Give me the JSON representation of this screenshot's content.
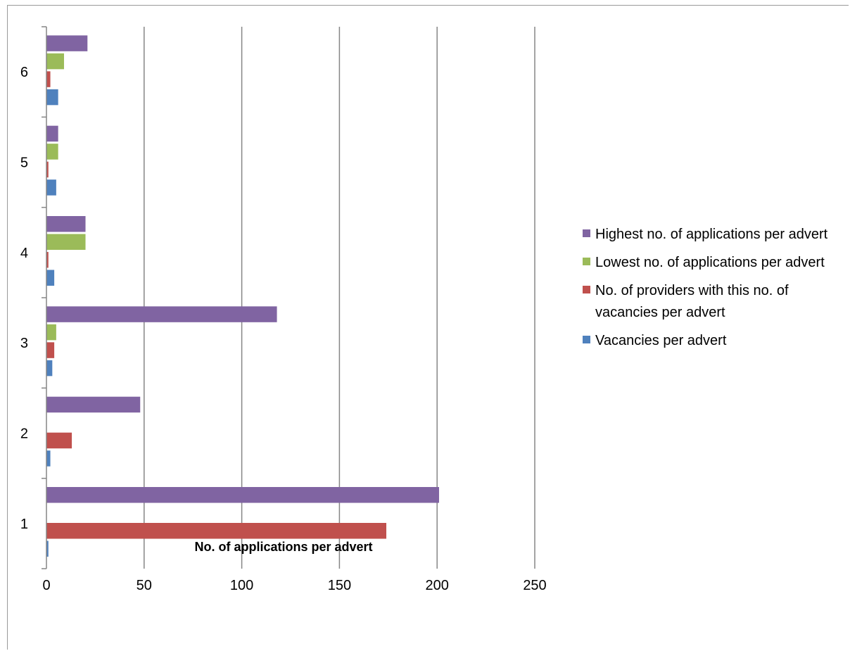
{
  "chart_data": {
    "type": "bar",
    "orientation": "horizontal",
    "title": "",
    "xlabel": "No. of applications per advert",
    "ylabel": "",
    "categories": [
      "1",
      "2",
      "3",
      "4",
      "5",
      "6"
    ],
    "xlim": [
      0,
      250
    ],
    "xticks": [
      "0",
      "50",
      "100",
      "150",
      "200",
      "250"
    ],
    "grid": true,
    "legend_position": "right",
    "series": [
      {
        "name": "Vacancies per advert",
        "color": "#4f81bd",
        "values": [
          1,
          2,
          3,
          4,
          5,
          6
        ]
      },
      {
        "name": "No. of providers with this no. of vacancies per advert",
        "color": "#c0504d",
        "values": [
          174,
          13,
          4,
          1,
          1,
          2
        ]
      },
      {
        "name": "Lowest no. of applications per advert",
        "color": "#9bbb59",
        "values": [
          0,
          0,
          5,
          20,
          6,
          9
        ]
      },
      {
        "name": "Highest no. of applications per advert",
        "color": "#8064a2",
        "values": [
          201,
          48,
          118,
          20,
          6,
          21
        ]
      }
    ]
  }
}
